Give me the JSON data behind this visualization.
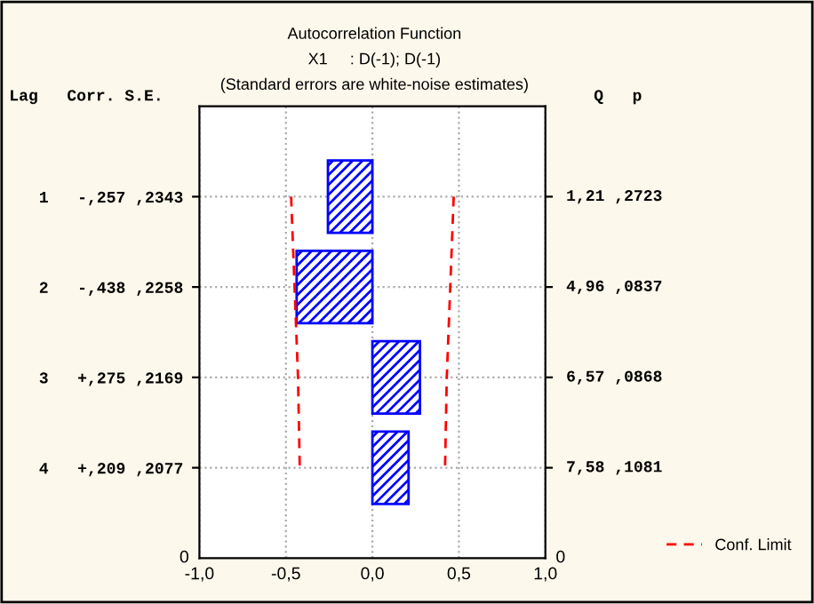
{
  "chart_data": {
    "type": "bar",
    "orientation": "horizontal",
    "title": "Autocorrelation Function",
    "subtitle": "X1     : D(-1); D(-1)\n(Standard errors are white-noise estimates)",
    "categories": [
      "1   -,257 ,2343",
      "2   -,438 ,2258",
      "3   +,275 ,2169",
      "4   +,209 ,2077"
    ],
    "series": [
      {
        "color": "#0000ff",
        "values": [
          -0.257,
          -0.438,
          0.275,
          0.209
        ]
      },
      {
        "type": "line",
        "name": "Conf. Limit",
        "color": "#ff0000",
        "values": [
          0.47,
          0.45,
          0.43,
          0.42
        ]
      },
      {
        "type": "line",
        "color": "#ff0000",
        "values": [
          -0.47,
          -0.45,
          -0.43,
          -0.42
        ]
      }
    ],
    "xlim": [
      -1,
      1
    ],
    "xticks": [
      {
        "value": -1,
        "label": "-1,0"
      },
      {
        "value": -0.5,
        "label": "-0,5"
      },
      {
        "value": 0,
        "label": "0,0"
      },
      {
        "value": 0.5,
        "label": "0,5"
      },
      {
        "value": 1,
        "label": "1,0"
      }
    ],
    "grid": true,
    "legend": "bottom right",
    "line_style": "dashed",
    "annotations": [
      "Lag   Corr. S.E.",
      "Q   p",
      "0",
      "0",
      "1,21 ,2723",
      "4,96 ,0837",
      "6,57 ,0868",
      "7,58 ,1081"
    ]
  }
}
